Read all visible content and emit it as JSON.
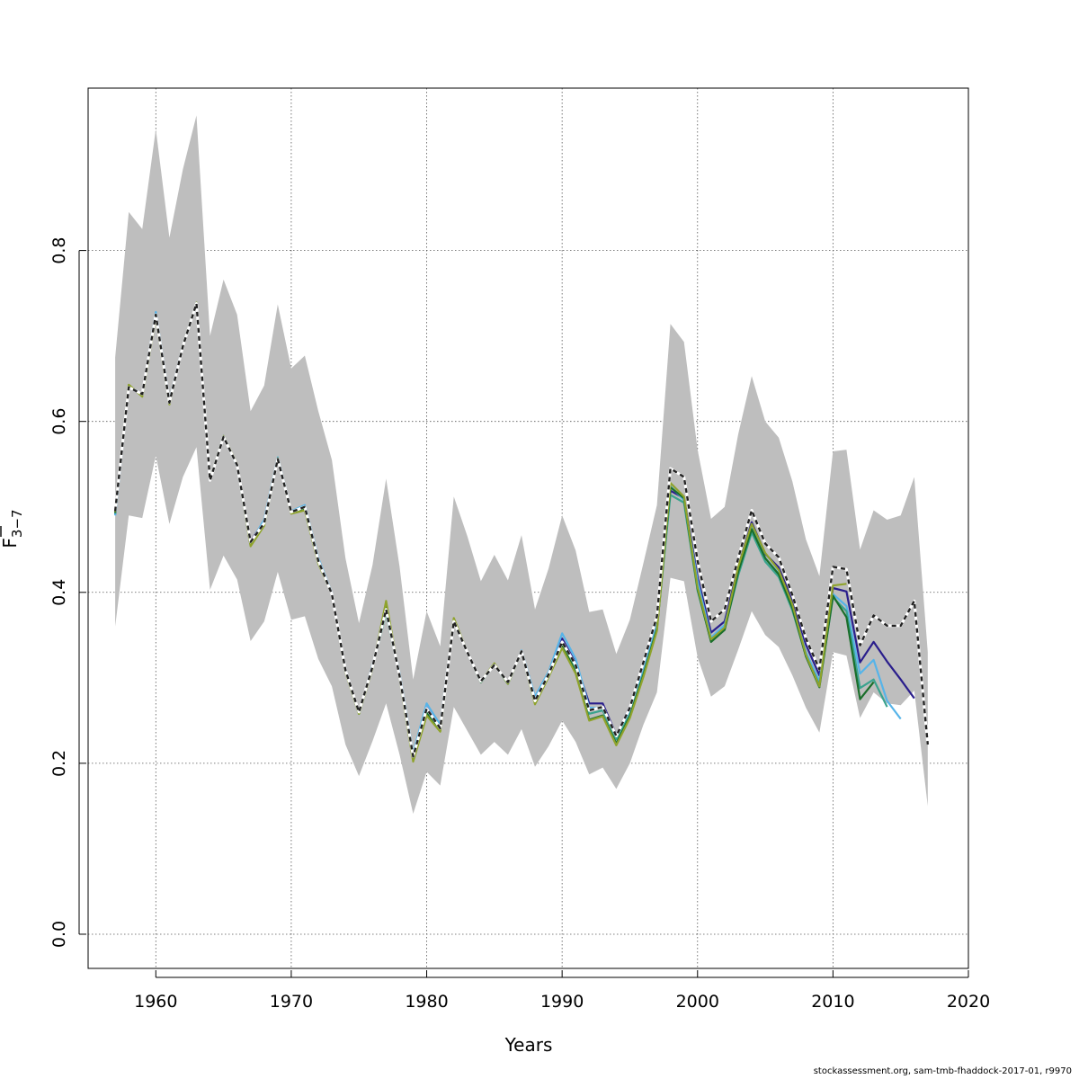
{
  "footer": "stockassessment.org, sam-tmb-fhaddock-2017-01, r9970",
  "chart_data": {
    "type": "line",
    "title": "",
    "xlabel": "Years",
    "ylabel": "F̄3−7",
    "ylabel_parts": {
      "main": "F",
      "sub": "3−7"
    },
    "xlim": [
      1955,
      2020
    ],
    "ylim": [
      -0.04,
      0.99
    ],
    "xticks": [
      1960,
      1970,
      1980,
      1990,
      2000,
      2010,
      2020
    ],
    "yticks": [
      0.0,
      0.2,
      0.4,
      0.6,
      0.8
    ],
    "ytick_labels": [
      "0.0",
      "0.2",
      "0.4",
      "0.6",
      "0.8"
    ],
    "grid": true,
    "band": {
      "name": "confidence interval",
      "color": "#bebebe",
      "x": [
        1957,
        1958,
        1959,
        1960,
        1961,
        1962,
        1963,
        1964,
        1965,
        1966,
        1967,
        1968,
        1969,
        1970,
        1971,
        1972,
        1973,
        1974,
        1975,
        1976,
        1977,
        1978,
        1979,
        1980,
        1981,
        1982,
        1983,
        1984,
        1985,
        1986,
        1987,
        1988,
        1989,
        1990,
        1991,
        1992,
        1993,
        1994,
        1995,
        1996,
        1997,
        1998,
        1999,
        2000,
        2001,
        2002,
        2003,
        2004,
        2005,
        2006,
        2007,
        2008,
        2009,
        2010,
        2011,
        2012,
        2013,
        2014,
        2015,
        2016,
        2017
      ],
      "lower": [
        0.36,
        0.49,
        0.487,
        0.56,
        0.48,
        0.535,
        0.57,
        0.403,
        0.443,
        0.415,
        0.343,
        0.366,
        0.424,
        0.368,
        0.372,
        0.322,
        0.29,
        0.222,
        0.185,
        0.226,
        0.27,
        0.21,
        0.141,
        0.19,
        0.174,
        0.266,
        0.238,
        0.21,
        0.225,
        0.21,
        0.24,
        0.196,
        0.22,
        0.25,
        0.225,
        0.187,
        0.195,
        0.17,
        0.2,
        0.245,
        0.283,
        0.417,
        0.413,
        0.324,
        0.278,
        0.29,
        0.333,
        0.378,
        0.35,
        0.336,
        0.303,
        0.265,
        0.236,
        0.33,
        0.326,
        0.253,
        0.283,
        0.27,
        0.268,
        0.285,
        0.15
      ],
      "upper": [
        0.675,
        0.845,
        0.825,
        0.942,
        0.815,
        0.895,
        0.958,
        0.7,
        0.766,
        0.725,
        0.612,
        0.642,
        0.737,
        0.662,
        0.677,
        0.612,
        0.555,
        0.44,
        0.364,
        0.432,
        0.533,
        0.43,
        0.298,
        0.378,
        0.337,
        0.512,
        0.466,
        0.413,
        0.444,
        0.414,
        0.467,
        0.38,
        0.428,
        0.49,
        0.449,
        0.377,
        0.38,
        0.328,
        0.368,
        0.434,
        0.502,
        0.714,
        0.693,
        0.567,
        0.486,
        0.5,
        0.585,
        0.653,
        0.6,
        0.581,
        0.53,
        0.462,
        0.419,
        0.565,
        0.567,
        0.45,
        0.496,
        0.485,
        0.49,
        0.535,
        0.33
      ]
    },
    "series": [
      {
        "color": "#2a1e8c",
        "dashed": false,
        "width": 2.2,
        "start": 1957,
        "values": [
          0.491,
          0.64,
          0.631,
          0.726,
          0.622,
          0.688,
          0.738,
          0.531,
          0.582,
          0.548,
          0.46,
          0.483,
          0.555,
          0.494,
          0.499,
          0.437,
          0.398,
          0.309,
          0.26,
          0.313,
          0.38,
          0.301,
          0.208,
          0.265,
          0.242,
          0.366,
          0.33,
          0.296,
          0.315,
          0.295,
          0.331,
          0.273,
          0.304,
          0.346,
          0.317,
          0.27,
          0.27,
          0.233,
          0.266,
          0.316,
          0.37,
          0.519,
          0.51,
          0.418,
          0.353,
          0.366,
          0.43,
          0.482,
          0.445,
          0.429,
          0.39,
          0.339,
          0.303,
          0.405,
          0.401,
          0.318,
          0.342,
          0.319,
          0.298,
          0.276
        ]
      },
      {
        "color": "#56b4e9",
        "dashed": false,
        "width": 2.2,
        "start": 1957,
        "values": [
          0.49,
          0.641,
          0.632,
          0.728,
          0.624,
          0.689,
          0.739,
          0.532,
          0.583,
          0.549,
          0.458,
          0.485,
          0.558,
          0.495,
          0.502,
          0.44,
          0.399,
          0.31,
          0.259,
          0.315,
          0.377,
          0.305,
          0.212,
          0.27,
          0.245,
          0.366,
          0.33,
          0.296,
          0.316,
          0.293,
          0.332,
          0.278,
          0.307,
          0.352,
          0.322,
          0.265,
          0.265,
          0.23,
          0.259,
          0.308,
          0.362,
          0.524,
          0.508,
          0.413,
          0.347,
          0.362,
          0.424,
          0.476,
          0.44,
          0.422,
          0.383,
          0.33,
          0.296,
          0.398,
          0.384,
          0.305,
          0.321,
          0.273,
          0.252
        ]
      },
      {
        "color": "#3aa38e",
        "dashed": false,
        "width": 2.2,
        "start": 1957,
        "values": [
          0.492,
          0.641,
          0.631,
          0.725,
          0.622,
          0.688,
          0.737,
          0.531,
          0.582,
          0.548,
          0.457,
          0.481,
          0.556,
          0.494,
          0.498,
          0.436,
          0.398,
          0.309,
          0.259,
          0.313,
          0.376,
          0.302,
          0.207,
          0.262,
          0.24,
          0.367,
          0.33,
          0.295,
          0.315,
          0.294,
          0.331,
          0.273,
          0.305,
          0.342,
          0.311,
          0.258,
          0.262,
          0.228,
          0.257,
          0.305,
          0.358,
          0.514,
          0.505,
          0.402,
          0.343,
          0.357,
          0.42,
          0.47,
          0.436,
          0.418,
          0.379,
          0.326,
          0.292,
          0.394,
          0.378,
          0.288,
          0.298,
          0.266
        ]
      },
      {
        "color": "#1a6e2a",
        "dashed": false,
        "width": 2.2,
        "start": 1957,
        "values": [
          0.493,
          0.642,
          0.63,
          0.724,
          0.621,
          0.688,
          0.738,
          0.531,
          0.582,
          0.549,
          0.455,
          0.479,
          0.556,
          0.493,
          0.497,
          0.435,
          0.398,
          0.308,
          0.258,
          0.312,
          0.384,
          0.301,
          0.205,
          0.259,
          0.238,
          0.368,
          0.33,
          0.295,
          0.316,
          0.293,
          0.331,
          0.271,
          0.303,
          0.338,
          0.307,
          0.251,
          0.256,
          0.223,
          0.255,
          0.303,
          0.357,
          0.523,
          0.51,
          0.404,
          0.342,
          0.356,
          0.424,
          0.474,
          0.44,
          0.421,
          0.382,
          0.325,
          0.289,
          0.396,
          0.371,
          0.275,
          0.295
        ]
      },
      {
        "color": "#8fa32c",
        "dashed": false,
        "width": 2.2,
        "start": 1957,
        "values": [
          0.494,
          0.643,
          0.629,
          0.722,
          0.62,
          0.689,
          0.739,
          0.532,
          0.583,
          0.55,
          0.454,
          0.478,
          0.557,
          0.492,
          0.496,
          0.434,
          0.398,
          0.307,
          0.258,
          0.311,
          0.39,
          0.3,
          0.202,
          0.256,
          0.237,
          0.37,
          0.33,
          0.296,
          0.317,
          0.293,
          0.331,
          0.269,
          0.301,
          0.335,
          0.305,
          0.25,
          0.255,
          0.221,
          0.253,
          0.301,
          0.355,
          0.528,
          0.512,
          0.406,
          0.345,
          0.359,
          0.43,
          0.48,
          0.446,
          0.426,
          0.386,
          0.327,
          0.29,
          0.408,
          0.41
        ]
      },
      {
        "color": "#222222",
        "dashed": true,
        "width": 2.4,
        "start": 1957,
        "values": [
          0.495,
          0.64,
          0.632,
          0.725,
          0.622,
          0.688,
          0.738,
          0.531,
          0.582,
          0.549,
          0.459,
          0.481,
          0.556,
          0.494,
          0.5,
          0.437,
          0.398,
          0.309,
          0.26,
          0.313,
          0.38,
          0.302,
          0.208,
          0.264,
          0.241,
          0.366,
          0.33,
          0.296,
          0.315,
          0.295,
          0.331,
          0.273,
          0.304,
          0.342,
          0.315,
          0.262,
          0.266,
          0.232,
          0.265,
          0.318,
          0.372,
          0.545,
          0.535,
          0.437,
          0.366,
          0.38,
          0.44,
          0.496,
          0.457,
          0.441,
          0.397,
          0.346,
          0.31,
          0.43,
          0.427,
          0.338,
          0.373,
          0.361,
          0.361,
          0.39,
          0.222
        ]
      }
    ]
  }
}
